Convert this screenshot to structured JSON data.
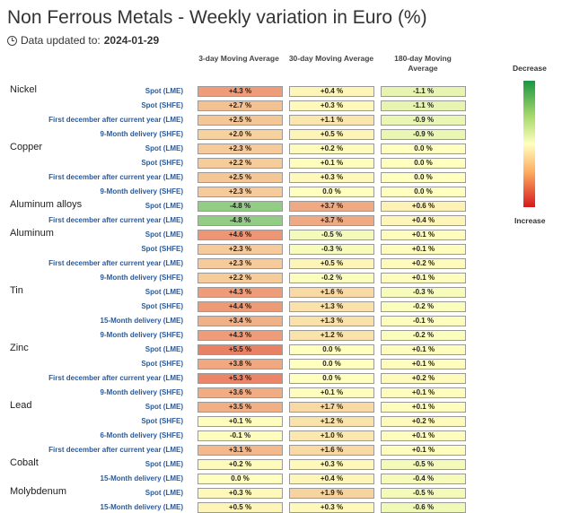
{
  "title": "Non Ferrous Metals - Weekly variation in Euro (%)",
  "updated_label": "Data updated to:",
  "updated_date": "2024-01-29",
  "legend": {
    "top": "Decrease",
    "bottom": "Increase"
  },
  "chart_data": {
    "type": "heatmap",
    "columns": [
      "3-day Moving Average",
      "30-day Moving Average",
      "180-day Moving Average"
    ],
    "colors": {
      "decrease": "#1a9641",
      "neutral": "#ffffbf",
      "increase": "#d7191c"
    },
    "rows": [
      {
        "group": "Nickel",
        "label": "Spot (LME)",
        "values": [
          4.3,
          0.4,
          -1.1
        ],
        "display": [
          "+4.3 %",
          "+0.4 %",
          "-1.1 %"
        ]
      },
      {
        "group": "",
        "label": "Spot (SHFE)",
        "values": [
          2.7,
          0.3,
          -1.1
        ],
        "display": [
          "+2.7 %",
          "+0.3 %",
          "-1.1 %"
        ]
      },
      {
        "group": "",
        "label": "First december after current year (LME)",
        "values": [
          2.5,
          1.1,
          -0.9
        ],
        "display": [
          "+2.5 %",
          "+1.1 %",
          "-0.9 %"
        ]
      },
      {
        "group": "",
        "label": "9-Month delivery (SHFE)",
        "values": [
          2.0,
          0.5,
          -0.9
        ],
        "display": [
          "+2.0 %",
          "+0.5 %",
          "-0.9 %"
        ]
      },
      {
        "group": "Copper",
        "label": "Spot (LME)",
        "values": [
          2.3,
          0.2,
          0.0
        ],
        "display": [
          "+2.3 %",
          "+0.2 %",
          "0.0 %"
        ]
      },
      {
        "group": "",
        "label": "Spot (SHFE)",
        "values": [
          2.2,
          0.1,
          0.0
        ],
        "display": [
          "+2.2 %",
          "+0.1 %",
          "0.0 %"
        ]
      },
      {
        "group": "",
        "label": "First december after current year (LME)",
        "values": [
          2.5,
          0.3,
          0.0
        ],
        "display": [
          "+2.5 %",
          "+0.3 %",
          "0.0 %"
        ]
      },
      {
        "group": "",
        "label": "9-Month delivery (SHFE)",
        "values": [
          2.3,
          0.0,
          0.0
        ],
        "display": [
          "+2.3 %",
          "0.0 %",
          "0.0 %"
        ]
      },
      {
        "group": "Aluminum alloys",
        "label": "Spot (LME)",
        "values": [
          -4.8,
          3.7,
          0.6
        ],
        "display": [
          "-4.8 %",
          "+3.7 %",
          "+0.6 %"
        ]
      },
      {
        "group": "",
        "label": "First december after current year (LME)",
        "values": [
          -4.8,
          3.7,
          0.4
        ],
        "display": [
          "-4.8 %",
          "+3.7 %",
          "+0.4 %"
        ]
      },
      {
        "group": "Aluminum",
        "label": "Spot (LME)",
        "values": [
          4.6,
          -0.5,
          0.1
        ],
        "display": [
          "+4.6 %",
          "-0.5 %",
          "+0.1 %"
        ]
      },
      {
        "group": "",
        "label": "Spot (SHFE)",
        "values": [
          2.3,
          -0.3,
          0.1
        ],
        "display": [
          "+2.3 %",
          "-0.3 %",
          "+0.1 %"
        ]
      },
      {
        "group": "",
        "label": "First december after current year (LME)",
        "values": [
          2.3,
          0.5,
          0.2
        ],
        "display": [
          "+2.3 %",
          "+0.5 %",
          "+0.2 %"
        ]
      },
      {
        "group": "",
        "label": "9-Month delivery (SHFE)",
        "values": [
          2.2,
          -0.2,
          0.1
        ],
        "display": [
          "+2.2 %",
          "-0.2 %",
          "+0.1 %"
        ]
      },
      {
        "group": "Tin",
        "label": "Spot (LME)",
        "values": [
          4.3,
          1.6,
          -0.3
        ],
        "display": [
          "+4.3 %",
          "+1.6 %",
          "-0.3 %"
        ]
      },
      {
        "group": "",
        "label": "Spot (SHFE)",
        "values": [
          4.4,
          1.3,
          -0.2
        ],
        "display": [
          "+4.4 %",
          "+1.3 %",
          "-0.2 %"
        ]
      },
      {
        "group": "",
        "label": "15-Month delivery (LME)",
        "values": [
          3.4,
          1.3,
          -0.1
        ],
        "display": [
          "+3.4 %",
          "+1.3 %",
          "-0.1 %"
        ]
      },
      {
        "group": "",
        "label": "9-Month delivery (SHFE)",
        "values": [
          4.3,
          1.2,
          -0.2
        ],
        "display": [
          "+4.3 %",
          "+1.2 %",
          "-0.2 %"
        ]
      },
      {
        "group": "Zinc",
        "label": "Spot (LME)",
        "values": [
          5.5,
          0.0,
          0.1
        ],
        "display": [
          "+5.5 %",
          "0.0 %",
          "+0.1 %"
        ]
      },
      {
        "group": "",
        "label": "Spot (SHFE)",
        "values": [
          3.8,
          0.0,
          0.1
        ],
        "display": [
          "+3.8 %",
          "0.0 %",
          "+0.1 %"
        ]
      },
      {
        "group": "",
        "label": "First december after current year (LME)",
        "values": [
          5.3,
          0.0,
          0.2
        ],
        "display": [
          "+5.3 %",
          "0.0 %",
          "+0.2 %"
        ]
      },
      {
        "group": "",
        "label": "9-Month delivery (SHFE)",
        "values": [
          3.6,
          0.1,
          0.1
        ],
        "display": [
          "+3.6 %",
          "+0.1 %",
          "+0.1 %"
        ]
      },
      {
        "group": "Lead",
        "label": "Spot (LME)",
        "values": [
          3.5,
          1.7,
          0.1
        ],
        "display": [
          "+3.5 %",
          "+1.7 %",
          "+0.1 %"
        ]
      },
      {
        "group": "",
        "label": "Spot (SHFE)",
        "values": [
          0.1,
          1.2,
          0.2
        ],
        "display": [
          "+0.1 %",
          "+1.2 %",
          "+0.2 %"
        ]
      },
      {
        "group": "",
        "label": "6-Month delivery (SHFE)",
        "values": [
          -0.1,
          1.0,
          0.1
        ],
        "display": [
          "-0.1 %",
          "+1.0 %",
          "+0.1 %"
        ]
      },
      {
        "group": "",
        "label": "First december after current year (LME)",
        "values": [
          3.1,
          1.6,
          0.1
        ],
        "display": [
          "+3.1 %",
          "+1.6 %",
          "+0.1 %"
        ]
      },
      {
        "group": "Cobalt",
        "label": "Spot (LME)",
        "values": [
          0.2,
          0.3,
          -0.5
        ],
        "display": [
          "+0.2 %",
          "+0.3 %",
          "-0.5 %"
        ]
      },
      {
        "group": "",
        "label": "15-Month delivery (LME)",
        "values": [
          0.0,
          0.4,
          -0.4
        ],
        "display": [
          "0.0 %",
          "+0.4 %",
          "-0.4 %"
        ]
      },
      {
        "group": "Molybdenum",
        "label": "Spot (LME)",
        "values": [
          0.3,
          1.9,
          -0.5
        ],
        "display": [
          "+0.3 %",
          "+1.9 %",
          "-0.5 %"
        ]
      },
      {
        "group": "",
        "label": "15-Month delivery (LME)",
        "values": [
          0.5,
          0.3,
          -0.6
        ],
        "display": [
          "+0.5 %",
          "+0.3 %",
          "-0.6 %"
        ]
      }
    ]
  }
}
